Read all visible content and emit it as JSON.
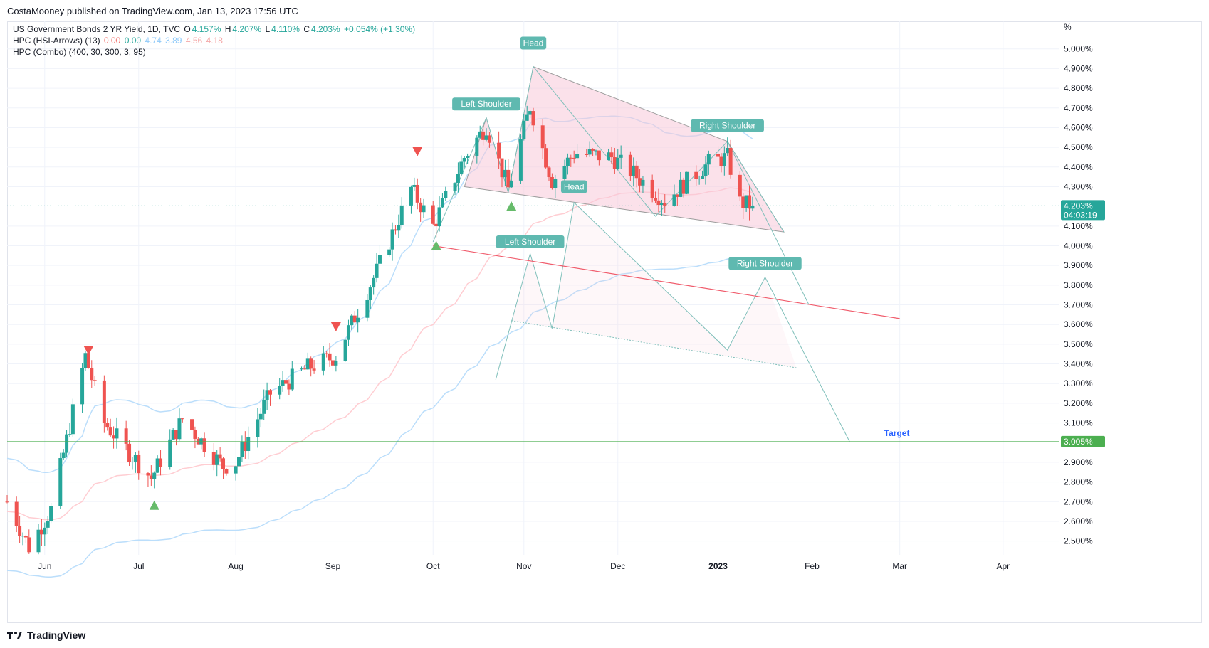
{
  "header": {
    "publisher_line": "CostaMooney published on TradingView.com, Jan 13, 2023 17:56 UTC"
  },
  "legend": {
    "main": {
      "title": "US Government Bonds 2 YR Yield, 1D, TVC",
      "o_label": "O",
      "o": "4.157%",
      "h_label": "H",
      "h": "4.207%",
      "l_label": "L",
      "l": "4.110%",
      "c_label": "C",
      "c": "4.203%",
      "change": "+0.054% (+1.30%)"
    },
    "ind1": {
      "name": "HPC (HSI-Arrows) (13)",
      "v1": "0.00",
      "v2": "0.00",
      "v3": "4.74",
      "v4": "3.89",
      "v5": "4.56",
      "v6": "4.18"
    },
    "ind2": {
      "name": "HPC (Combo) (400, 30, 300, 3, 95)"
    }
  },
  "colors": {
    "up": "#26a69a",
    "down": "#ef5350",
    "teal_label": "#5fb9b0",
    "pattern_fill": "#f8c8d8",
    "target_line": "#4caf50",
    "red_line": "#f05c6c",
    "band_blue": "#bbdefb",
    "band_pink": "#ffcdd2"
  },
  "chart_data": {
    "type": "candlestick",
    "unit_label": "%",
    "ylim": [
      2.43,
      5.14
    ],
    "y_ticks": [
      "5.000%",
      "4.900%",
      "4.800%",
      "4.700%",
      "4.600%",
      "4.500%",
      "4.400%",
      "4.300%",
      "4.100%",
      "4.000%",
      "3.900%",
      "3.800%",
      "3.700%",
      "3.600%",
      "3.500%",
      "3.400%",
      "3.300%",
      "3.200%",
      "3.100%",
      "2.900%",
      "2.800%",
      "2.700%",
      "2.600%",
      "2.500%"
    ],
    "x_ticks": [
      "Jun",
      "Jul",
      "Aug",
      "Sep",
      "Oct",
      "Nov",
      "Dec",
      "2023",
      "Feb",
      "Mar",
      "Apr"
    ],
    "x_range": [
      "2022-05-20",
      "2023-04-21"
    ],
    "last_price": {
      "value": 4.203,
      "label": "4.203%",
      "countdown": "04:03:19"
    },
    "target": {
      "value": 3.005,
      "label": "3.005%",
      "text": "Target"
    },
    "annotations": {
      "labels": [
        "Head",
        "Left Shoulder",
        "Right Shoulder",
        "Head",
        "Left Shoulder",
        "Right Shoulder"
      ]
    },
    "key_points": [
      {
        "date": "2022-05-20",
        "close": 2.7
      },
      {
        "date": "2022-05-27",
        "close": 2.47
      },
      {
        "date": "2022-06-03",
        "close": 2.66
      },
      {
        "date": "2022-06-14",
        "close": 3.44
      },
      {
        "date": "2022-06-20",
        "close": 3.1
      },
      {
        "date": "2022-07-05",
        "close": 2.82
      },
      {
        "date": "2022-07-15",
        "close": 3.12
      },
      {
        "date": "2022-07-28",
        "close": 2.88
      },
      {
        "date": "2022-08-01",
        "close": 2.9
      },
      {
        "date": "2022-08-12",
        "close": 3.25
      },
      {
        "date": "2022-08-24",
        "close": 3.38
      },
      {
        "date": "2022-09-02",
        "close": 3.44
      },
      {
        "date": "2022-09-15",
        "close": 3.87
      },
      {
        "date": "2022-09-26",
        "close": 4.29
      },
      {
        "date": "2022-10-03",
        "close": 4.1
      },
      {
        "date": "2022-10-13",
        "close": 4.45
      },
      {
        "date": "2022-10-20",
        "close": 4.61
      },
      {
        "date": "2022-10-27",
        "close": 4.29
      },
      {
        "date": "2022-11-03",
        "close": 4.71
      },
      {
        "date": "2022-11-10",
        "close": 4.33
      },
      {
        "date": "2022-11-17",
        "close": 4.47
      },
      {
        "date": "2022-11-29",
        "close": 4.45
      },
      {
        "date": "2022-12-05",
        "close": 4.38
      },
      {
        "date": "2022-12-16",
        "close": 4.23
      },
      {
        "date": "2022-12-30",
        "close": 4.42
      },
      {
        "date": "2023-01-05",
        "close": 4.45
      },
      {
        "date": "2023-01-09",
        "close": 4.22
      },
      {
        "date": "2023-01-13",
        "close": 4.203
      }
    ]
  }
}
